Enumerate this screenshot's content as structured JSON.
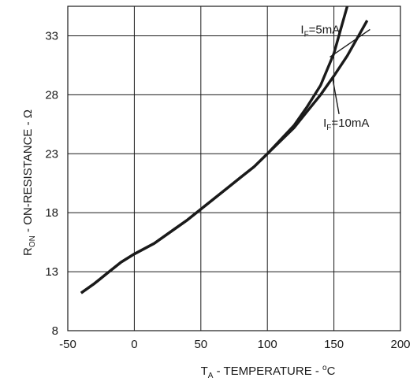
{
  "chart_data": {
    "type": "line",
    "title": "",
    "xlabel_parts": {
      "main": "T",
      "sub": "A",
      "rest": " - TEMPERATURE - ",
      "deg": "o",
      "unit": "C"
    },
    "ylabel_parts": {
      "main": "R",
      "sub": "ON",
      "rest": " - ON-RESISTANCE - Ω"
    },
    "xlim": [
      -50,
      200
    ],
    "ylim": [
      8,
      35.5
    ],
    "xticks": [
      -50,
      0,
      50,
      100,
      150,
      200
    ],
    "yticks": [
      8,
      13,
      18,
      23,
      28,
      33
    ],
    "grid": true,
    "series": [
      {
        "name": "IF=5mA",
        "label_main": "I",
        "label_sub": "F",
        "label_rest": "=5mA",
        "x": [
          -40,
          -30,
          -20,
          -10,
          0,
          15,
          30,
          40,
          50,
          60,
          70,
          80,
          90,
          100,
          110,
          120,
          130,
          140,
          150,
          155,
          160
        ],
        "y": [
          11.2,
          12.0,
          12.9,
          13.8,
          14.5,
          15.4,
          16.6,
          17.4,
          18.3,
          19.2,
          20.1,
          21.0,
          21.9,
          23.0,
          24.2,
          25.4,
          27.0,
          28.8,
          31.5,
          33.5,
          35.5
        ]
      },
      {
        "name": "IF=10mA",
        "label_main": "I",
        "label_sub": "F",
        "label_rest": "=10mA",
        "x": [
          -40,
          -30,
          -20,
          -10,
          0,
          15,
          30,
          40,
          50,
          60,
          70,
          80,
          90,
          100,
          110,
          120,
          130,
          140,
          150,
          160,
          170,
          175
        ],
        "y": [
          11.2,
          12.0,
          12.9,
          13.8,
          14.5,
          15.4,
          16.6,
          17.4,
          18.3,
          19.2,
          20.1,
          21.0,
          21.9,
          23.0,
          24.1,
          25.2,
          26.6,
          28.0,
          29.6,
          31.3,
          33.3,
          34.3
        ]
      }
    ],
    "annotations": [
      {
        "series": "IF=5mA",
        "text_x": 125,
        "text_y": 33.2,
        "arrow_to_x": 147,
        "arrow_to_y": 31.2
      },
      {
        "series": "IF=10mA",
        "text_x": 142,
        "text_y": 25.3,
        "arrow_to_x": 149,
        "arrow_to_y": 29.4
      }
    ]
  }
}
